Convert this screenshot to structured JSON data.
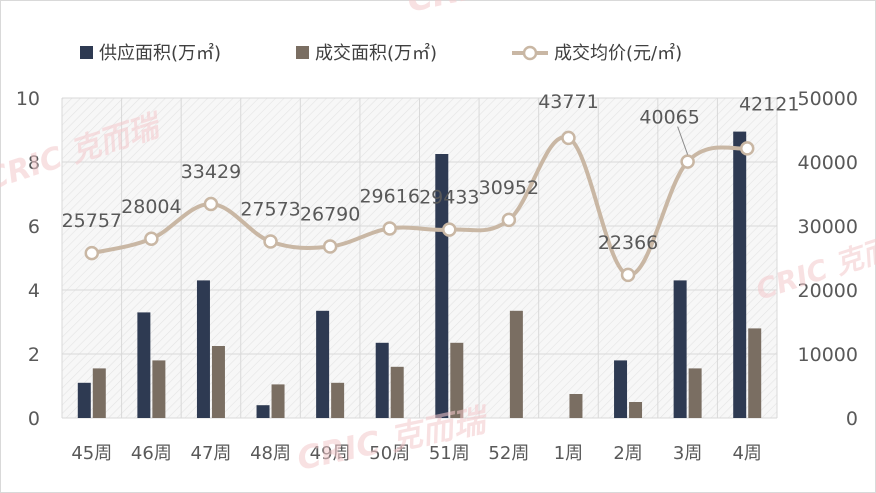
{
  "chart_data": {
    "type": "bar",
    "categories": [
      "45周",
      "46周",
      "47周",
      "48周",
      "49周",
      "50周",
      "51周",
      "52周",
      "1周",
      "2周",
      "3周",
      "4周"
    ],
    "series": [
      {
        "name": "供应面积(万㎡)",
        "type": "bar",
        "axis": "left",
        "color": "#2e3a52",
        "values": [
          1.1,
          3.3,
          4.3,
          0.4,
          3.35,
          2.35,
          8.25,
          0,
          0,
          1.8,
          4.3,
          8.95
        ]
      },
      {
        "name": "成交面积(万㎡)",
        "type": "bar",
        "axis": "left",
        "color": "#7a6e62",
        "values": [
          1.55,
          1.8,
          2.25,
          1.05,
          1.1,
          1.6,
          2.35,
          3.35,
          0.75,
          0.5,
          1.55,
          2.8
        ]
      },
      {
        "name": "成交均价(元/㎡)",
        "type": "line",
        "axis": "right",
        "color": "#c9b7a4",
        "values": [
          25757,
          28004,
          33429,
          27573,
          26790,
          29616,
          29433,
          30952,
          43771,
          22366,
          40065,
          42121
        ]
      }
    ],
    "y_left": {
      "ylim": [
        0,
        10
      ],
      "ticks": [
        "0",
        "2",
        "4",
        "6",
        "8",
        "10"
      ]
    },
    "y_right": {
      "ylim": [
        0,
        50000
      ],
      "ticks": [
        "0",
        "10000",
        "20000",
        "30000",
        "40000",
        "50000"
      ]
    },
    "data_labels": [
      "25757",
      "28004",
      "33429",
      "27573",
      "26790",
      "29616",
      "29433",
      "30952",
      "43771",
      "22366",
      "40065",
      "42121"
    ],
    "legend_position": "top",
    "grid": true,
    "background": "hatched"
  },
  "watermark": {
    "text": "CRIC 克而瑞"
  }
}
